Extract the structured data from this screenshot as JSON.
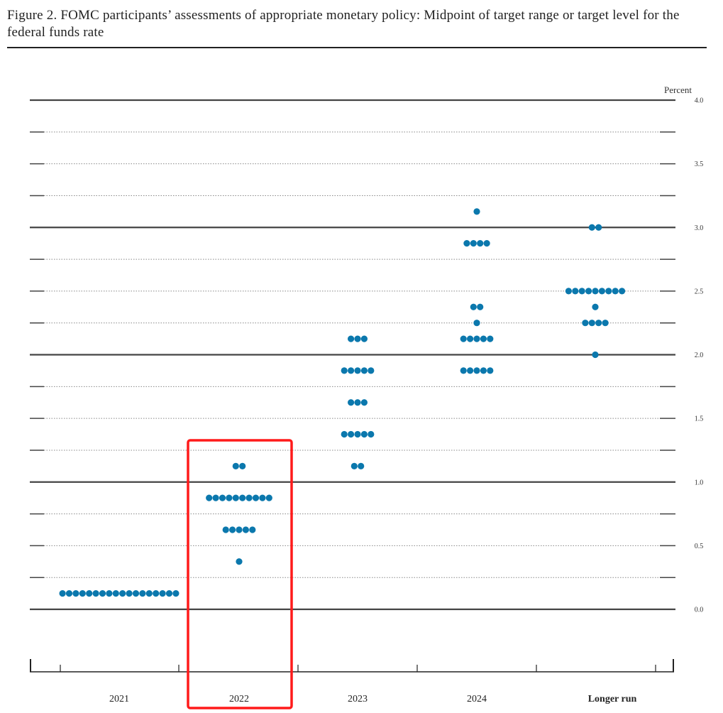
{
  "title": "Figure 2.  FOMC participants’ assessments of appropriate monetary policy: Midpoint of target range or target level for the federal funds rate",
  "chart_data": {
    "type": "scatter",
    "subtype": "dot-plot",
    "title": "Figure 2.  FOMC participants’ assessments of appropriate monetary policy: Midpoint of target range or target level for the federal funds rate",
    "ylabel": "Percent",
    "xlabel": "",
    "ylim": [
      0,
      4.0
    ],
    "yticks": [
      "0.0",
      "0.5",
      "1.0",
      "1.5",
      "2.0",
      "2.5",
      "3.0",
      "3.5",
      "4.0"
    ],
    "grid": true,
    "categories": [
      "2021",
      "2022",
      "2023",
      "2024",
      "Longer run"
    ],
    "dot_color": "#0b78ad",
    "series": [
      {
        "category": "2021",
        "points": [
          {
            "y": 0.125,
            "count": 18
          }
        ]
      },
      {
        "category": "2022",
        "points": [
          {
            "y": 1.125,
            "count": 2
          },
          {
            "y": 0.875,
            "count": 10
          },
          {
            "y": 0.625,
            "count": 5
          },
          {
            "y": 0.375,
            "count": 1
          }
        ]
      },
      {
        "category": "2023",
        "points": [
          {
            "y": 2.125,
            "count": 3
          },
          {
            "y": 1.875,
            "count": 5
          },
          {
            "y": 1.625,
            "count": 3
          },
          {
            "y": 1.375,
            "count": 5
          },
          {
            "y": 1.125,
            "count": 2
          }
        ]
      },
      {
        "category": "2024",
        "points": [
          {
            "y": 3.125,
            "count": 1
          },
          {
            "y": 2.875,
            "count": 4
          },
          {
            "y": 2.375,
            "count": 2
          },
          {
            "y": 2.25,
            "count": 1
          },
          {
            "y": 2.125,
            "count": 5
          },
          {
            "y": 1.875,
            "count": 5
          }
        ]
      },
      {
        "category": "Longer run",
        "points": [
          {
            "y": 3.0,
            "count": 2
          },
          {
            "y": 2.5,
            "count": 9
          },
          {
            "y": 2.375,
            "count": 1
          },
          {
            "y": 2.25,
            "count": 4
          },
          {
            "y": 2.0,
            "count": 1
          }
        ]
      }
    ],
    "highlight": {
      "category": "2022",
      "color": "#ff1a1a"
    }
  }
}
